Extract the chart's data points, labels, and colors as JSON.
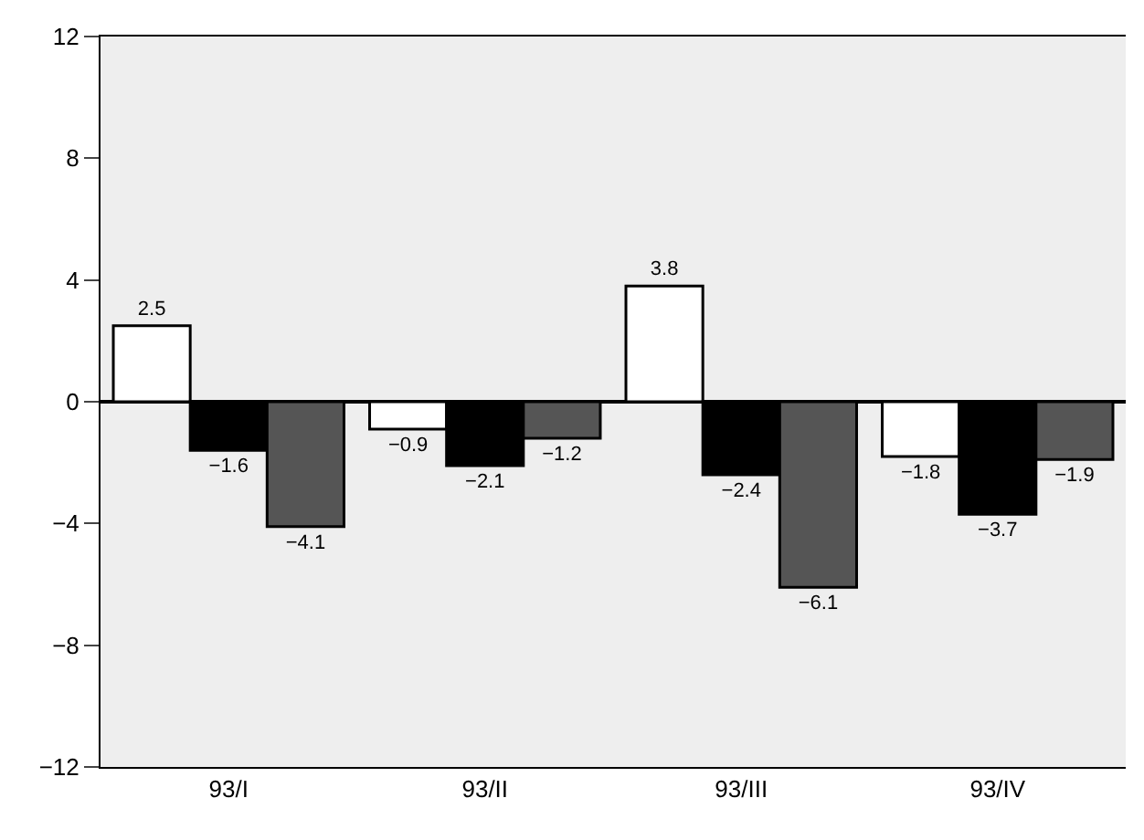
{
  "chart_data": {
    "type": "bar",
    "categories": [
      "93/I",
      "93/II",
      "93/III",
      "93/IV"
    ],
    "series": [
      {
        "color": "#ffffff",
        "values": [
          2.5,
          -0.9,
          3.8,
          -1.8
        ]
      },
      {
        "color": "#000000",
        "values": [
          -1.6,
          -2.1,
          -2.4,
          -3.7
        ]
      },
      {
        "color": "#555555",
        "values": [
          -4.1,
          -1.2,
          -6.1,
          -1.9
        ]
      }
    ],
    "ylim": [
      -12,
      12
    ],
    "yticks": [
      -12,
      -8,
      -4,
      0,
      4,
      8,
      12
    ],
    "data_labels": true
  }
}
